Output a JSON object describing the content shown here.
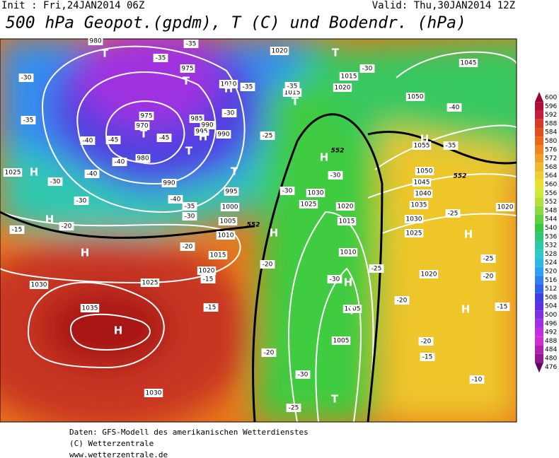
{
  "header": {
    "init": "Init : Fri,24JAN2014 06Z",
    "valid": "Valid: Thu,30JAN2014 12Z",
    "title": "500 hPa Geopot.(gpdm), T (C) und Bodendr. (hPa)"
  },
  "legend": {
    "labels": [
      600,
      596,
      592,
      588,
      584,
      580,
      576,
      572,
      568,
      564,
      560,
      556,
      552,
      548,
      544,
      540,
      536,
      532,
      528,
      524,
      520,
      516,
      512,
      508,
      504,
      500,
      496,
      492,
      488,
      484,
      480,
      476
    ],
    "colors": [
      "#9a0030",
      "#b0103a",
      "#c81e3c",
      "#d83a2a",
      "#e05020",
      "#e86a18",
      "#f08420",
      "#f0a028",
      "#f0b830",
      "#f0d030",
      "#e8e030",
      "#d0e838",
      "#b0e040",
      "#90d840",
      "#60d040",
      "#38c840",
      "#30c878",
      "#30c8a8",
      "#30c8c8",
      "#30b8e0",
      "#30a0f0",
      "#3080f0",
      "#3060e8",
      "#4040e0",
      "#6030e0",
      "#8030e0",
      "#a030e0",
      "#c030e0",
      "#d030d0",
      "#b020b0",
      "#901890",
      "#600860"
    ]
  },
  "map": {
    "pressure_labels": [
      "1020",
      "1015",
      "1015",
      "1020",
      "1010",
      "1045",
      "1050",
      "1055",
      "1050",
      "1045",
      "1040",
      "1035",
      "1030",
      "1025",
      "1020",
      "1020",
      "975",
      "970",
      "980",
      "985",
      "990",
      "995",
      "990",
      "990",
      "995",
      "1000",
      "1005",
      "1010",
      "1015",
      "1020",
      "1025",
      "1030",
      "1035",
      "1030",
      "1025",
      "1030",
      "1025",
      "1020",
      "1015",
      "1010",
      "1005",
      "1005",
      "980",
      "975"
    ],
    "temperature_labels": [
      "-35",
      "-35",
      "-30",
      "-35",
      "-40",
      "-45",
      "-45",
      "-40",
      "-40",
      "-40",
      "-35",
      "-30",
      "-30",
      "-30",
      "-20",
      "-15",
      "-20",
      "-15",
      "-15",
      "-25",
      "-30",
      "-35",
      "-35",
      "-30",
      "-40",
      "-35",
      "-30",
      "-30",
      "-25",
      "-25",
      "-20",
      "-15",
      "-20",
      "-30",
      "-25",
      "-20",
      "-20",
      "-15",
      "-10",
      "-20",
      "-30",
      "-25"
    ],
    "contour_labels": [
      "552",
      "552",
      "552"
    ],
    "highs": [
      "H",
      "H",
      "H",
      "H",
      "H",
      "H",
      "H",
      "H",
      "H",
      "H",
      "H",
      "H"
    ],
    "lows": [
      "T",
      "T",
      "T",
      "T",
      "T",
      "T",
      "T",
      "T",
      "T"
    ]
  },
  "footer": {
    "lines": [
      "Daten: GFS-Modell des amerikanischen Wetterdienstes",
      "(C) Wetterzentrale",
      "www.wetterzentrale.de"
    ]
  }
}
